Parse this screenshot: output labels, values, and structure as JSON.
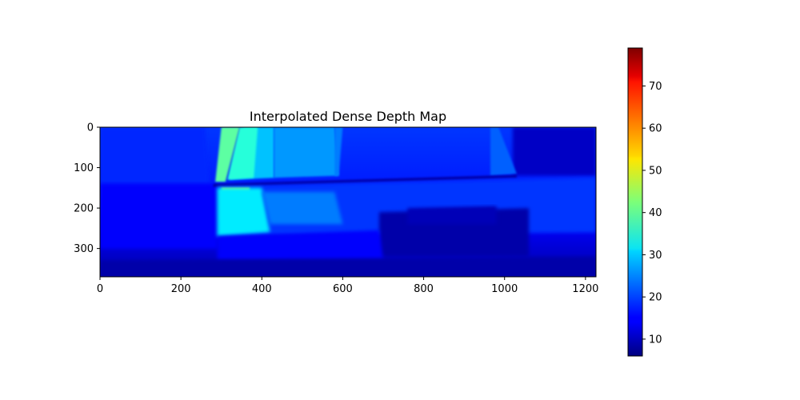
{
  "chart_data": {
    "type": "heatmap",
    "title": "Interpolated Dense Depth Map",
    "xlabel": "",
    "ylabel": "",
    "colormap": "jet",
    "image_width": 1226,
    "image_height": 370,
    "x_ticks": [
      0,
      200,
      400,
      600,
      800,
      1000,
      1200
    ],
    "y_ticks": [
      0,
      100,
      200,
      300
    ],
    "xlim": [
      0,
      1226
    ],
    "ylim": [
      370,
      0
    ],
    "colorbar": {
      "range": [
        6,
        79
      ],
      "ticks": [
        10,
        20,
        30,
        40,
        50,
        60,
        70
      ]
    },
    "colormap_stops": [
      {
        "v": 0.0,
        "color": "#00007f"
      },
      {
        "v": 0.11,
        "color": "#0000ff"
      },
      {
        "v": 0.125,
        "color": "#0000ff"
      },
      {
        "v": 0.34,
        "color": "#00d4ff"
      },
      {
        "v": 0.35,
        "color": "#0ce4f2"
      },
      {
        "v": 0.5,
        "color": "#7cff79"
      },
      {
        "v": 0.64,
        "color": "#ffe600"
      },
      {
        "v": 0.65,
        "color": "#ffd700"
      },
      {
        "v": 0.89,
        "color": "#ff1300"
      },
      {
        "v": 0.91,
        "color": "#e40000"
      },
      {
        "v": 1.0,
        "color": "#7f0000"
      }
    ]
  }
}
